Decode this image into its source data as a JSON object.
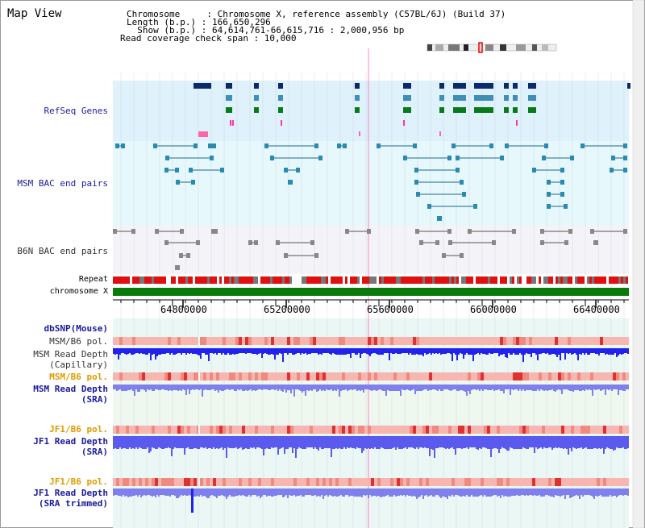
{
  "title": "Map View",
  "header": {
    "line1": "Chromosome     : Chromosome X, reference assembly (C57BL/6J) (Build 37)",
    "line2": "Length (b.p.) : 166,650,296",
    "line3": "  Show (b.p.) : 64,614,761-66,615,716 : 2,000,956 bp",
    "line4": "Read coverage check span : 10,000"
  },
  "tracks": {
    "refseq": "RefSeq Genes",
    "msm_bac": "MSM BAC end pairs",
    "b6n_bac": "B6N BAC end pairs",
    "repeat": "Repeat",
    "chromosome": "chromosome X",
    "dbsnp": "dbSNP(Mouse)",
    "msm_b6_pol_1": "MSM/B6 pol.",
    "msm_depth_cap_1": "MSM Read Depth",
    "msm_depth_cap_2": "(Capillary)",
    "msm_b6_pol_2": "MSM/B6 pol.",
    "msm_depth_sra_1": "MSM Read Depth",
    "msm_depth_sra_2": "(SRA)",
    "jf1_pol_1": "JF1/B6 pol.",
    "jf1_depth_sra_1": "JF1 Read Depth",
    "jf1_depth_sra_2": "(SRA)",
    "jf1_pol_2": "JF1/B6 pol.",
    "jf1_depth_trim_1": "JF1 Read Depth",
    "jf1_depth_trim_2": "(SRA trimmed)"
  },
  "axis": {
    "ticks": [
      "64800000",
      "65200000",
      "65600000",
      "66000000",
      "66400000"
    ]
  },
  "colors": {
    "refseq_bg": "#dff1fb",
    "msm_bg": "#e6f8fb",
    "b6n_bg": "#f4f4f8",
    "repeat_red": "#e01010",
    "chrom_green": "#0a7a0a",
    "pol_pink": "#f7b7b0",
    "depth_dark": "#2222ee",
    "depth_light": "#7f7fee",
    "label_blue": "#1a1aa0",
    "label_orange": "#e09a00"
  }
}
